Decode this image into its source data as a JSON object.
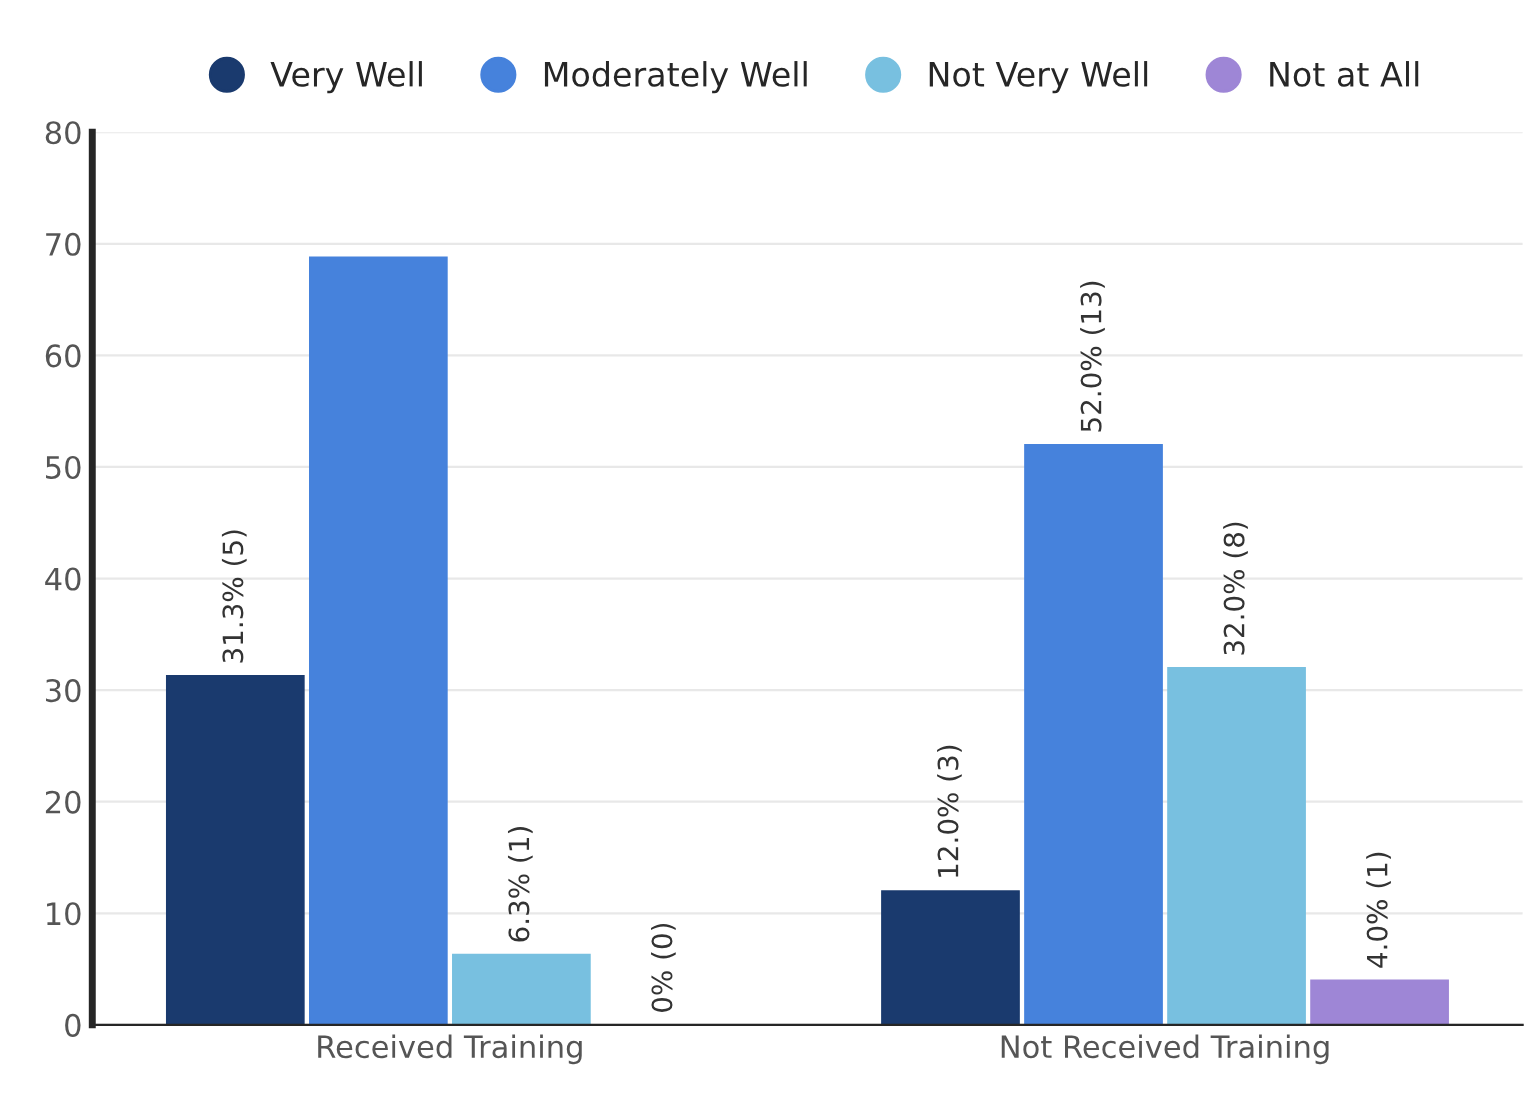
{
  "chart_data": {
    "type": "bar",
    "categories": [
      "Received Training",
      "Not Received Training"
    ],
    "series": [
      {
        "name": "Very Well",
        "color": "#1a3a6e",
        "values": [
          31.3,
          12.0
        ],
        "value_labels": [
          "31.3% (5)",
          "12.0% (3)"
        ]
      },
      {
        "name": "Moderately Well",
        "color": "#4682dc",
        "values": [
          68.8,
          52.0
        ],
        "value_labels": [
          null,
          "52.0% (13)"
        ]
      },
      {
        "name": "Not Very Well",
        "color": "#78c0e0",
        "values": [
          6.3,
          32.0
        ],
        "value_labels": [
          "6.3% (1)",
          "32.0% (8)"
        ]
      },
      {
        "name": "Not at All",
        "color": "#9e86d6",
        "values": [
          0,
          4.0
        ],
        "value_labels": [
          "0% (0)",
          "4.0% (1)"
        ]
      }
    ],
    "ylim": [
      0,
      80
    ],
    "yticks": [
      0,
      10,
      20,
      30,
      40,
      50,
      60,
      70,
      80
    ],
    "grid": "y",
    "legend": "top",
    "marker": "circle"
  }
}
